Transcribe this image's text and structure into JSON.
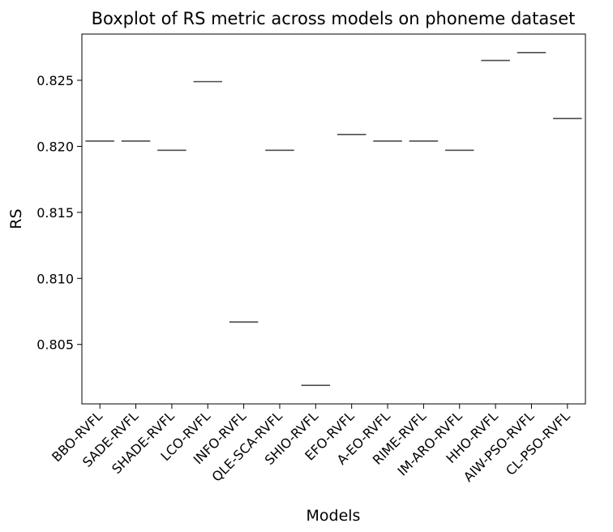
{
  "chart_data": {
    "type": "box",
    "title": "Boxplot of RS metric across models on phoneme dataset",
    "xlabel": "Models",
    "ylabel": "RS",
    "ylim": [
      0.8005,
      0.8285
    ],
    "yticks": [
      0.805,
      0.81,
      0.815,
      0.82,
      0.825
    ],
    "ytick_labels": [
      "0.805",
      "0.810",
      "0.815",
      "0.820",
      "0.825"
    ],
    "grid": false,
    "line_color": "#4d4d4d",
    "categories": [
      "BBO-RVFL",
      "SADE-RVFL",
      "SHADE-RVFL",
      "LCO-RVFL",
      "INFO-RVFL",
      "QLE-SCA-RVFL",
      "SHIO-RVFL",
      "EFO-RVFL",
      "A-EO-RVFL",
      "RIME-RVFL",
      "IM-ARO-RVFL",
      "HHO-RVFL",
      "AIW-PSO-RVFL",
      "CL-PSO-RVFL"
    ],
    "values": [
      0.8204,
      0.8204,
      0.8197,
      0.8249,
      0.8067,
      0.8197,
      0.8019,
      0.8209,
      0.8204,
      0.8204,
      0.8197,
      0.8265,
      0.8271,
      0.8221
    ]
  }
}
